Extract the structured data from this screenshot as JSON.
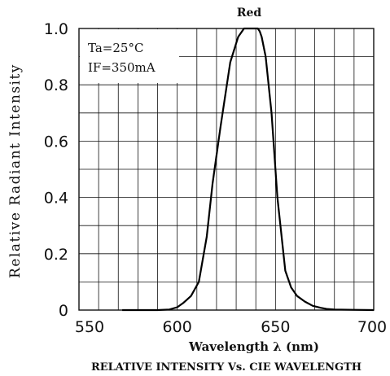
{
  "chart_data": {
    "type": "line",
    "title": "RELATIVE INTENSITY Vs. CIE WAVELENGTH",
    "xlabel": "Wavelength λ (nm)",
    "ylabel": "Relative Radiant Intensity",
    "xlim": [
      550,
      700
    ],
    "ylim": [
      0,
      1.0
    ],
    "x_ticks": [
      550,
      600,
      650,
      700
    ],
    "x_tick_labels": [
      "550",
      "600",
      "650",
      "700"
    ],
    "y_ticks": [
      0,
      0.2,
      0.4,
      0.6,
      0.8,
      1.0
    ],
    "y_tick_labels": [
      "0",
      "0.2",
      "0.4",
      "0.6",
      "0.8",
      "1.0"
    ],
    "grid": true,
    "annotations": [
      "Ta=25°C",
      "IF=350mA"
    ],
    "series": [
      {
        "name": "Red",
        "x": [
          572,
          580,
          590,
          596,
          600,
          603,
          607,
          611,
          615,
          618,
          622,
          627,
          631,
          633,
          634,
          636,
          637,
          639,
          641,
          642,
          643,
          645,
          648,
          651,
          655,
          658,
          661,
          665,
          669,
          673,
          676,
          680,
          690,
          700
        ],
        "y": [
          0,
          0,
          0,
          0.002,
          0.01,
          0.025,
          0.05,
          0.1,
          0.26,
          0.45,
          0.65,
          0.88,
          0.97,
          0.99,
          1.0,
          1.0,
          1.0,
          1.0,
          1.0,
          0.99,
          0.97,
          0.9,
          0.7,
          0.4,
          0.14,
          0.08,
          0.05,
          0.03,
          0.015,
          0.008,
          0.004,
          0.002,
          0.001,
          0
        ]
      }
    ]
  }
}
